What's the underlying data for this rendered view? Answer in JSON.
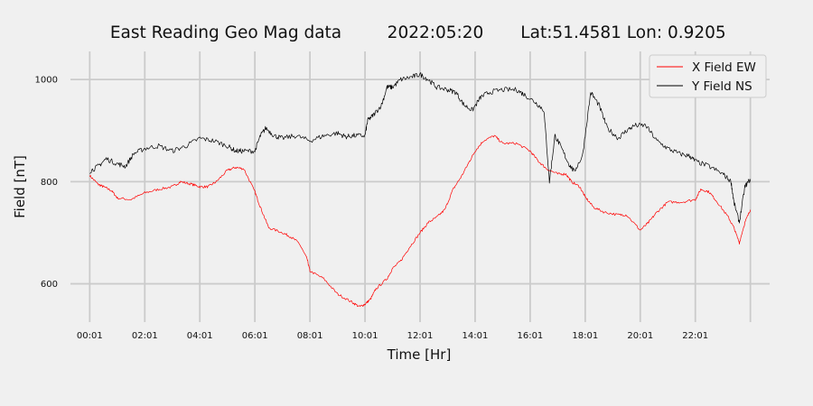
{
  "chart_data": {
    "type": "line",
    "title_parts": [
      "East Reading Geo Mag data",
      "2022:05:20",
      "Lat:51.4581  Lon: 0.9205"
    ],
    "xlabel": "Time  [Hr]",
    "ylabel": "Field  [nT]",
    "x_unit": "hours",
    "xlim": [
      -0.7,
      24.7
    ],
    "ylim": [
      525,
      1055
    ],
    "x_ticks": [
      {
        "value": 0,
        "label": "00:01"
      },
      {
        "value": 2,
        "label": "02:01"
      },
      {
        "value": 4,
        "label": "04:01"
      },
      {
        "value": 6,
        "label": "06:01"
      },
      {
        "value": 8,
        "label": "08:01"
      },
      {
        "value": 10,
        "label": "10:01"
      },
      {
        "value": 12,
        "label": "12:01"
      },
      {
        "value": 14,
        "label": "14:01"
      },
      {
        "value": 16,
        "label": "16:01"
      },
      {
        "value": 18,
        "label": "18:01"
      },
      {
        "value": 20,
        "label": "20:01"
      },
      {
        "value": 22,
        "label": "22:01"
      }
    ],
    "x_grid_extra": [
      24
    ],
    "y_ticks": [
      600,
      800,
      1000
    ],
    "grid": true,
    "legend_position": "top-right",
    "series": [
      {
        "name": "X Field EW",
        "color": "#ff0000",
        "points": [
          [
            0,
            812
          ],
          [
            0.3,
            795
          ],
          [
            0.5,
            790
          ],
          [
            0.8,
            782
          ],
          [
            1,
            768
          ],
          [
            1.5,
            765
          ],
          [
            2,
            778
          ],
          [
            2.5,
            785
          ],
          [
            3,
            790
          ],
          [
            3.3,
            800
          ],
          [
            3.7,
            795
          ],
          [
            4,
            790
          ],
          [
            4.3,
            790
          ],
          [
            4.6,
            800
          ],
          [
            5,
            822
          ],
          [
            5.3,
            828
          ],
          [
            5.6,
            825
          ],
          [
            6,
            780
          ],
          [
            6.2,
            750
          ],
          [
            6.5,
            710
          ],
          [
            7,
            700
          ],
          [
            7.3,
            692
          ],
          [
            7.6,
            680
          ],
          [
            7.9,
            648
          ],
          [
            8,
            625
          ],
          [
            8.5,
            610
          ],
          [
            9,
            580
          ],
          [
            9.5,
            565
          ],
          [
            9.8,
            555
          ],
          [
            10,
            560
          ],
          [
            10.2,
            570
          ],
          [
            10.4,
            590
          ],
          [
            10.8,
            610
          ],
          [
            11,
            630
          ],
          [
            11.3,
            645
          ],
          [
            11.6,
            670
          ],
          [
            12,
            700
          ],
          [
            12.3,
            720
          ],
          [
            12.6,
            730
          ],
          [
            12.9,
            745
          ],
          [
            13.2,
            785
          ],
          [
            13.5,
            810
          ],
          [
            13.8,
            840
          ],
          [
            14,
            860
          ],
          [
            14.3,
            880
          ],
          [
            14.7,
            890
          ],
          [
            15,
            875
          ],
          [
            15.5,
            875
          ],
          [
            16,
            860
          ],
          [
            16.3,
            840
          ],
          [
            16.6,
            825
          ],
          [
            17,
            815
          ],
          [
            17.3,
            815
          ],
          [
            17.5,
            800
          ],
          [
            17.8,
            790
          ],
          [
            18,
            770
          ],
          [
            18.3,
            750
          ],
          [
            18.7,
            740
          ],
          [
            19.2,
            735
          ],
          [
            19.5,
            735
          ],
          [
            20,
            705
          ],
          [
            20.3,
            720
          ],
          [
            20.6,
            740
          ],
          [
            21,
            760
          ],
          [
            21.5,
            760
          ],
          [
            22,
            765
          ],
          [
            22.2,
            785
          ],
          [
            22.5,
            780
          ],
          [
            22.8,
            760
          ],
          [
            23.2,
            730
          ],
          [
            23.4,
            710
          ],
          [
            23.6,
            680
          ],
          [
            23.8,
            720
          ],
          [
            24,
            745
          ]
        ]
      },
      {
        "name": "Y Field NS",
        "color": "#000000",
        "points": [
          [
            0,
            820
          ],
          [
            0.3,
            830
          ],
          [
            0.6,
            845
          ],
          [
            1,
            835
          ],
          [
            1.3,
            830
          ],
          [
            1.6,
            855
          ],
          [
            2,
            865
          ],
          [
            2.5,
            870
          ],
          [
            3,
            860
          ],
          [
            3.5,
            870
          ],
          [
            4,
            885
          ],
          [
            4.5,
            880
          ],
          [
            5,
            870
          ],
          [
            5.3,
            860
          ],
          [
            5.6,
            860
          ],
          [
            6,
            860
          ],
          [
            6.2,
            890
          ],
          [
            6.4,
            905
          ],
          [
            6.7,
            890
          ],
          [
            7,
            885
          ],
          [
            7.5,
            890
          ],
          [
            8,
            880
          ],
          [
            8.5,
            890
          ],
          [
            9,
            895
          ],
          [
            9.3,
            888
          ],
          [
            9.6,
            890
          ],
          [
            10,
            890
          ],
          [
            10.1,
            920
          ],
          [
            10.3,
            930
          ],
          [
            10.6,
            950
          ],
          [
            10.8,
            985
          ],
          [
            11,
            985
          ],
          [
            11.3,
            1000
          ],
          [
            11.7,
            1005
          ],
          [
            12,
            1010
          ],
          [
            12.3,
            1000
          ],
          [
            12.6,
            985
          ],
          [
            13,
            980
          ],
          [
            13.3,
            975
          ],
          [
            13.6,
            950
          ],
          [
            13.9,
            940
          ],
          [
            14.2,
            965
          ],
          [
            14.5,
            975
          ],
          [
            15,
            980
          ],
          [
            15.5,
            980
          ],
          [
            15.8,
            970
          ],
          [
            16.2,
            955
          ],
          [
            16.5,
            940
          ],
          [
            16.7,
            800
          ],
          [
            16.9,
            890
          ],
          [
            17.1,
            870
          ],
          [
            17.4,
            835
          ],
          [
            17.6,
            820
          ],
          [
            17.9,
            850
          ],
          [
            18.2,
            975
          ],
          [
            18.5,
            950
          ],
          [
            18.8,
            905
          ],
          [
            19.2,
            885
          ],
          [
            19.5,
            900
          ],
          [
            19.8,
            910
          ],
          [
            20.2,
            910
          ],
          [
            20.6,
            880
          ],
          [
            21,
            865
          ],
          [
            21.4,
            855
          ],
          [
            21.8,
            850
          ],
          [
            22,
            840
          ],
          [
            22.5,
            830
          ],
          [
            23,
            815
          ],
          [
            23.3,
            800
          ],
          [
            23.4,
            760
          ],
          [
            23.6,
            720
          ],
          [
            23.8,
            790
          ],
          [
            24,
            805
          ]
        ]
      }
    ]
  }
}
